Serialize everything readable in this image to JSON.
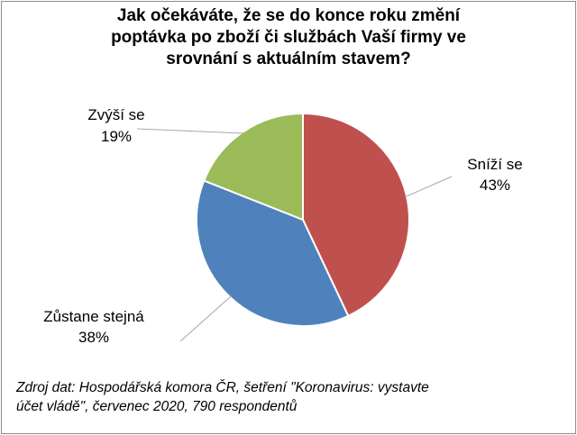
{
  "chart_data": {
    "type": "pie",
    "title": "Jak očekáváte, že se do konce roku změní poptávka po zboží či službách Vaší firmy ve srovnání s aktuálním stavem?",
    "title_lines": [
      "Jak očekáváte, že se do konce roku změní",
      "poptávka po zboží či službách Vaší firmy ve",
      "srovnání s aktuálním stavem?"
    ],
    "slices": [
      {
        "label": "Sníží se",
        "value": 43,
        "value_label": "43%",
        "color": "#c0504d"
      },
      {
        "label": "Zůstane stejná",
        "value": 38,
        "value_label": "38%",
        "color": "#4f81bd"
      },
      {
        "label": "Zvýší se",
        "value": 19,
        "value_label": "19%",
        "color": "#9bbb59"
      }
    ],
    "start_angle_deg": 0,
    "direction": "clockwise",
    "legend": "none",
    "data_labels": "outside with leader lines"
  },
  "source_lines": [
    "Zdroj dat: Hospodářská komora ČR, šetření \"Koronavirus: vystavte",
    "účet vládě\", červenec 2020, 790 respondentů"
  ]
}
